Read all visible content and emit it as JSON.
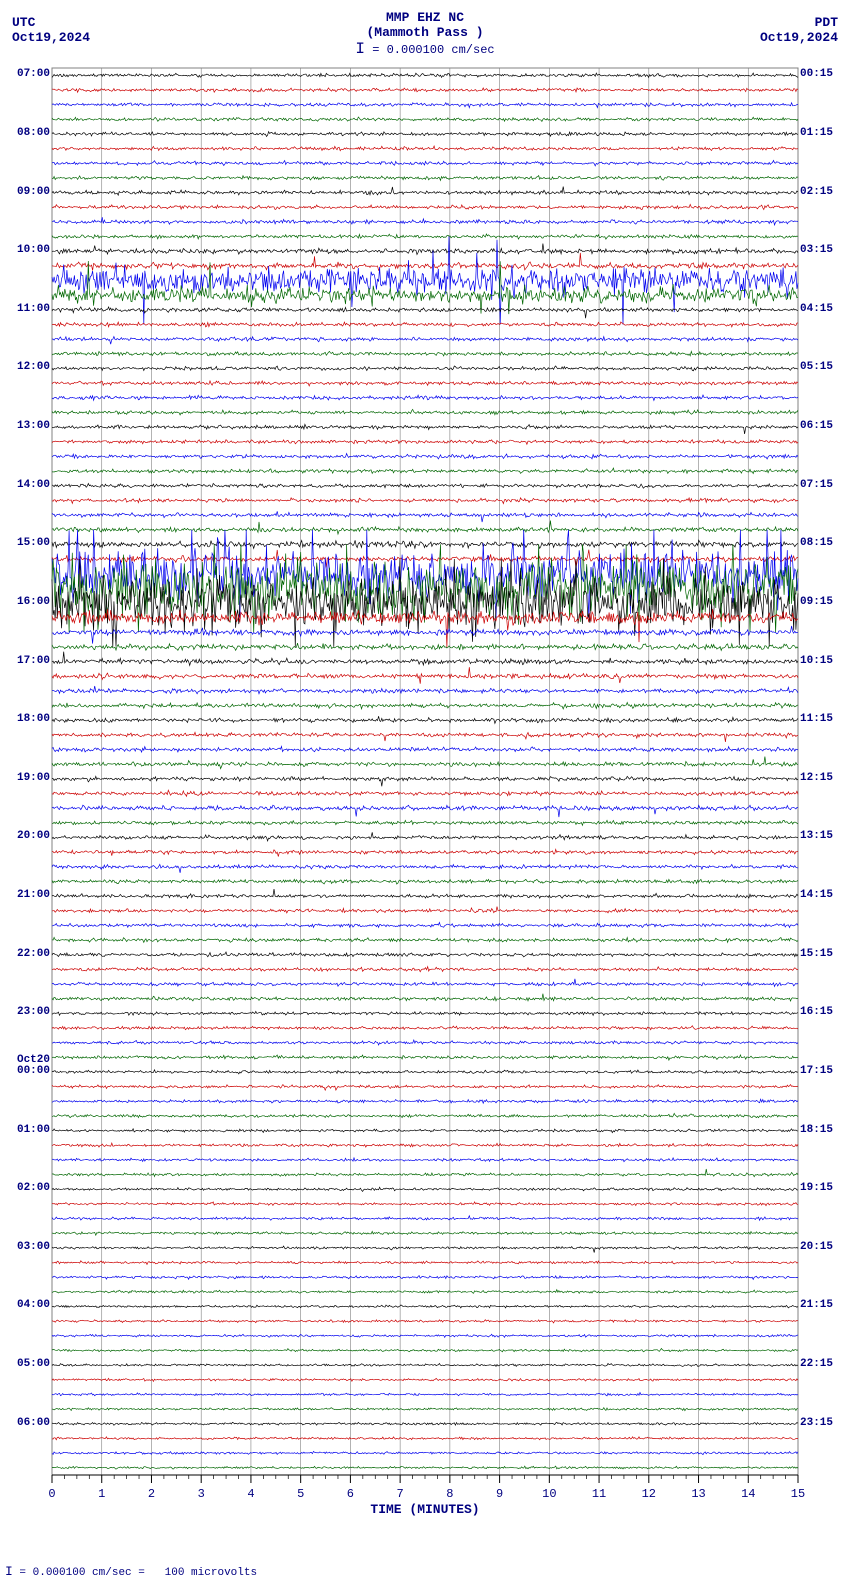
{
  "header": {
    "station": "MMP EHZ NC",
    "location": "(Mammoth Pass )",
    "scale": "= 0.000100 cm/sec"
  },
  "tz_left": "UTC",
  "tz_right": "PDT",
  "date_left": "Oct19,2024",
  "date_right": "Oct19,2024",
  "footer_scale": "= 0.000100 cm/sec =",
  "footer_mv": "100 microvolts",
  "chart": {
    "type": "helicorder",
    "background_color": "#ffffff",
    "grid_color": "#808080",
    "border_color": "#000000",
    "frame_color": "#808080",
    "text_color": "#000080",
    "x_axis": {
      "label": "TIME (MINUTES)",
      "ticks": [
        0,
        1,
        2,
        3,
        4,
        5,
        6,
        7,
        8,
        9,
        10,
        11,
        12,
        13,
        14,
        15
      ],
      "minor_per_major": 4
    },
    "trace_colors": [
      "#000000",
      "#cc0000",
      "#0000ee",
      "#006600"
    ],
    "traces_per_hour": 4,
    "total_lines": 96,
    "base_amp": 2.2,
    "left_hour_labels": [
      "07:00",
      "08:00",
      "09:00",
      "10:00",
      "11:00",
      "12:00",
      "13:00",
      "14:00",
      "15:00",
      "16:00",
      "17:00",
      "18:00",
      "19:00",
      "20:00",
      "21:00",
      "22:00",
      "23:00",
      "00:00",
      "01:00",
      "02:00",
      "03:00",
      "04:00",
      "05:00",
      "06:00"
    ],
    "right_hour_labels": [
      "00:15",
      "01:15",
      "02:15",
      "03:15",
      "04:15",
      "05:15",
      "06:15",
      "07:15",
      "08:15",
      "09:15",
      "10:15",
      "11:15",
      "12:15",
      "13:15",
      "14:15",
      "15:15",
      "16:15",
      "17:15",
      "18:15",
      "19:15",
      "20:15",
      "21:15",
      "22:15",
      "23:15"
    ],
    "day_break": {
      "line_index": 68,
      "label": "Oct20"
    },
    "amplitude_profile": [
      2.2,
      2.2,
      2.2,
      2.2,
      2.2,
      2.2,
      2.2,
      2.2,
      2.4,
      2.3,
      2.5,
      2.4,
      3.0,
      4.0,
      18.0,
      10.0,
      2.8,
      2.4,
      2.4,
      2.4,
      2.3,
      2.3,
      2.3,
      2.3,
      2.3,
      2.3,
      2.3,
      2.3,
      2.4,
      2.4,
      2.6,
      3.0,
      4.0,
      3.5,
      35.0,
      40.0,
      38.0,
      8.0,
      4.0,
      3.5,
      3.2,
      3.0,
      2.8,
      2.8,
      2.8,
      2.6,
      2.5,
      2.6,
      2.6,
      2.5,
      3.0,
      2.4,
      2.4,
      2.4,
      2.4,
      2.4,
      2.3,
      2.2,
      2.3,
      2.3,
      2.2,
      2.2,
      2.2,
      2.2,
      2.0,
      2.0,
      2.0,
      2.0,
      1.9,
      1.9,
      1.9,
      2.0,
      1.8,
      1.8,
      1.8,
      1.8,
      1.7,
      1.7,
      1.7,
      1.7,
      1.6,
      1.6,
      1.7,
      1.6,
      1.5,
      1.5,
      1.5,
      1.5,
      1.5,
      1.5,
      1.5,
      1.5,
      1.5,
      1.5,
      1.5,
      1.5
    ],
    "spike_rate": [
      0,
      0,
      0,
      0,
      0,
      0,
      0,
      0,
      0.01,
      0.01,
      0.02,
      0.02,
      0.04,
      0.06,
      0.2,
      0.15,
      0.03,
      0.01,
      0.01,
      0.01,
      0.01,
      0.01,
      0.01,
      0.01,
      0.01,
      0.01,
      0.01,
      0.01,
      0.01,
      0.01,
      0.02,
      0.03,
      0.05,
      0.05,
      0.35,
      0.4,
      0.35,
      0.1,
      0.05,
      0.04,
      0.04,
      0.03,
      0.03,
      0.03,
      0.03,
      0.03,
      0.02,
      0.03,
      0.02,
      0.02,
      0.04,
      0.02,
      0.02,
      0.02,
      0.02,
      0.02,
      0.02,
      0.01,
      0.02,
      0.02,
      0.01,
      0.01,
      0.01,
      0.01,
      0.01,
      0.01,
      0.01,
      0.01,
      0.01,
      0.01,
      0.01,
      0.01,
      0.005,
      0.005,
      0.005,
      0.005,
      0.005,
      0.005,
      0.005,
      0.005,
      0.005,
      0.005,
      0.01,
      0.005,
      0,
      0,
      0,
      0,
      0,
      0,
      0,
      0,
      0,
      0,
      0,
      0
    ]
  }
}
